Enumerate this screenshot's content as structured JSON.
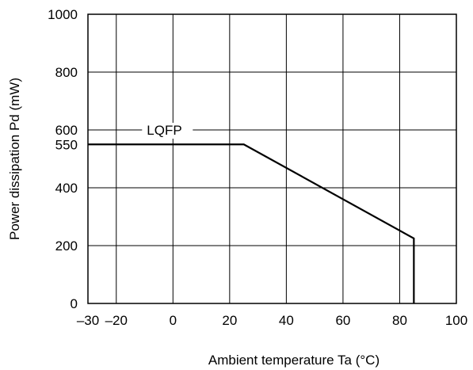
{
  "chart_data": {
    "type": "line",
    "title": "",
    "xlabel": "Ambient temperature Ta (°C)",
    "ylabel": "Power dissipation Pd (mW)",
    "xlim": [
      -30,
      100
    ],
    "ylim": [
      0,
      1000
    ],
    "x_ticks": [
      -30,
      -20,
      0,
      20,
      40,
      60,
      80,
      100
    ],
    "x_tick_labels": [
      "–30",
      "–20",
      "0",
      "20",
      "40",
      "60",
      "80",
      "100"
    ],
    "y_ticks": [
      0,
      200,
      400,
      550,
      600,
      800,
      1000
    ],
    "y_tick_labels": [
      "0",
      "200",
      "400",
      "550",
      "600",
      "800",
      "1000"
    ],
    "x_gridlines": [
      -20,
      0,
      20,
      40,
      60,
      80
    ],
    "y_gridlines": [
      200,
      400,
      600,
      800
    ],
    "grid": true,
    "legend": "none",
    "series": [
      {
        "name": "LQFP",
        "x": [
          -30,
          25,
          85,
          85
        ],
        "y": [
          550,
          550,
          225,
          0
        ]
      }
    ],
    "colors": {
      "line": "#000000",
      "grid": "#000000",
      "background": "#ffffff"
    }
  }
}
